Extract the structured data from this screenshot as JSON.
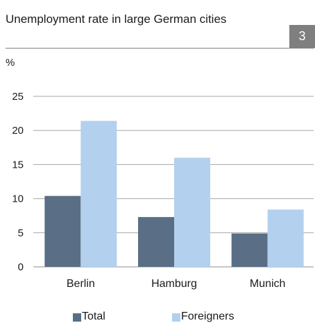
{
  "header": {
    "title": "Unemployment rate in large German cities",
    "badge": "3"
  },
  "chart_data": {
    "type": "bar",
    "unit_label": "%",
    "categories": [
      "Berlin",
      "Hamburg",
      "Munich"
    ],
    "series": [
      {
        "name": "Total",
        "values": [
          10.4,
          7.3,
          4.9
        ],
        "color": "#5a6f85"
      },
      {
        "name": "Foreigners",
        "values": [
          21.4,
          16.0,
          8.4
        ],
        "color": "#b3d0ee"
      }
    ],
    "ylim": [
      0,
      25
    ],
    "yticks": [
      0,
      5,
      10,
      15,
      20,
      25
    ],
    "grid": true,
    "legend_position": "bottom"
  }
}
